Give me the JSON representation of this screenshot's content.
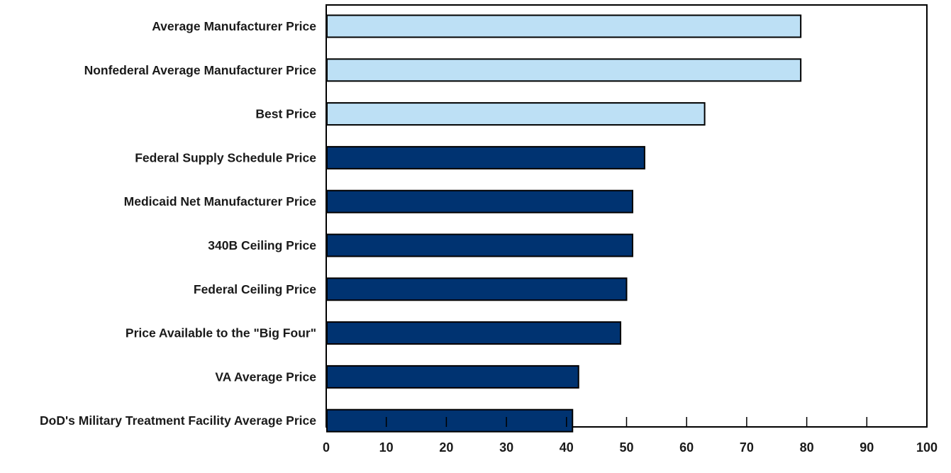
{
  "chart_data": {
    "type": "bar",
    "orientation": "horizontal",
    "categories": [
      "Average Manufacturer Price",
      "Nonfederal Average Manufacturer Price",
      "Best Price",
      "Federal Supply Schedule Price",
      "Medicaid Net Manufacturer Price",
      "340B Ceiling Price",
      "Federal Ceiling Price",
      "Price Available to the \"Big Four\"",
      "VA Average Price",
      "DoD's Military Treatment Facility Average Price"
    ],
    "values": [
      79,
      79,
      63,
      53,
      51,
      51,
      50,
      49,
      42,
      41
    ],
    "xlim": [
      0,
      100
    ],
    "xticks": [
      0,
      10,
      20,
      30,
      40,
      50,
      60,
      70,
      80,
      90,
      100
    ],
    "title": "",
    "xlabel": "",
    "ylabel": "",
    "grid": false,
    "bar_fill_colors": [
      "#bde0f5",
      "#bde0f5",
      "#bde0f5",
      "#003371",
      "#003371",
      "#003371",
      "#003371",
      "#003371",
      "#003371",
      "#003371"
    ],
    "bar_stroke_color": "#000000"
  }
}
